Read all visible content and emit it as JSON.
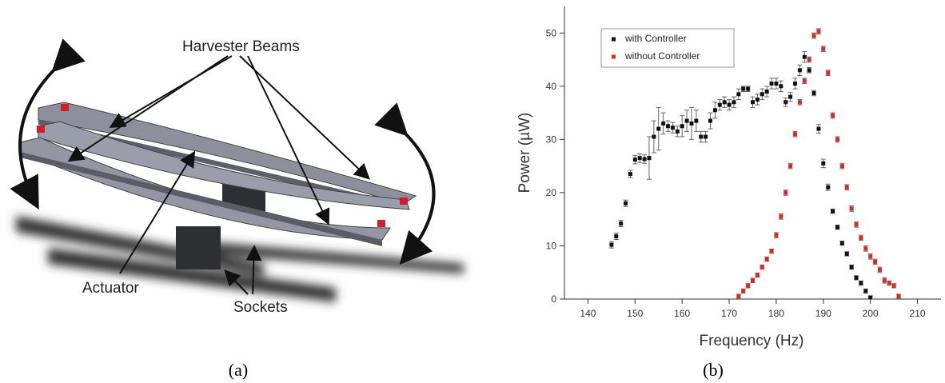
{
  "diagram": {
    "labels": {
      "beams": "Harvester Beams",
      "actuator": "Actuator",
      "sockets": "Sockets"
    },
    "caption": "(a)"
  },
  "chart_data": {
    "type": "scatter",
    "caption": "(b)",
    "x_label": "Frequency (Hz)",
    "y_label": "Power (µW)",
    "xlim": [
      135,
      215
    ],
    "xticks": [
      140,
      150,
      160,
      170,
      180,
      190,
      200,
      210
    ],
    "ylim": [
      0,
      55
    ],
    "yticks": [
      0,
      10,
      20,
      30,
      40,
      50
    ],
    "legend": "top-left",
    "series": [
      {
        "name": "with Controller",
        "color": "#111111",
        "x": [
          145,
          146,
          147,
          148,
          149,
          150,
          151,
          152,
          153,
          154,
          155,
          156,
          157,
          158,
          159,
          160,
          161,
          162,
          163,
          164,
          165,
          166,
          167,
          168,
          169,
          170,
          171,
          172,
          173,
          174,
          175,
          176,
          177,
          178,
          179,
          180,
          181,
          182,
          183,
          184,
          185,
          186,
          187,
          188,
          189,
          190,
          191,
          192,
          193,
          194,
          195,
          196,
          197,
          198,
          199,
          200
        ],
        "values": [
          10.2,
          11.8,
          14.2,
          18,
          23.5,
          26.2,
          26.5,
          26.3,
          26.5,
          30.5,
          32,
          33,
          32.5,
          32.2,
          31.5,
          32.5,
          33.5,
          33,
          33.5,
          30.5,
          30.5,
          33.5,
          35.5,
          36.5,
          37,
          36.5,
          37,
          38.5,
          39.5,
          39.5,
          37,
          37.5,
          38.5,
          39,
          40.5,
          40.5,
          40,
          37,
          38,
          40.5,
          43,
          45.5,
          43,
          38.7,
          32,
          25.5,
          21,
          16.5,
          13.5,
          10.5,
          8.5,
          6,
          4,
          3,
          1.5,
          0.3
        ],
        "errors": [
          0.6,
          0.6,
          0.6,
          0.6,
          0.7,
          0.8,
          0.8,
          0.8,
          4,
          3,
          4,
          2,
          1,
          1,
          1,
          2,
          2,
          3,
          2,
          1,
          1,
          1.5,
          1.5,
          1,
          1,
          1,
          1,
          1,
          0.5,
          0.5,
          1,
          1,
          1,
          1,
          1,
          1,
          1,
          0.8,
          0.8,
          1,
          1,
          1,
          0.5,
          0.5,
          0.8,
          0.8,
          0.6,
          0.4,
          0.4,
          0.4,
          0.4,
          0.4,
          0.4,
          0.4,
          0.4,
          0.3
        ]
      },
      {
        "name": "without Controller",
        "color": "#e0261d",
        "x": [
          172,
          173,
          174,
          175,
          176,
          177,
          178,
          179,
          180,
          181,
          182,
          183,
          184,
          185,
          186,
          187,
          188,
          189,
          190,
          191,
          192,
          193,
          194,
          195,
          196,
          197,
          198,
          199,
          200,
          201,
          202,
          203,
          204,
          205,
          206
        ],
        "values": [
          0.5,
          1.5,
          2.5,
          3.5,
          4.5,
          6,
          7.5,
          9,
          12,
          15.5,
          20,
          25,
          31,
          37,
          41,
          45,
          49.5,
          50.3,
          47,
          42.5,
          34.5,
          30,
          25,
          21,
          17,
          14,
          11.5,
          9.5,
          8,
          7,
          5.5,
          3.5,
          3,
          2.5,
          0.5
        ],
        "errors": [
          0.4,
          0.4,
          0.4,
          0.4,
          0.4,
          0.4,
          0.4,
          0.4,
          0.5,
          0.5,
          0.5,
          0.5,
          0.5,
          0.5,
          0.5,
          0.5,
          0.5,
          0.5,
          0.5,
          0.5,
          0.5,
          0.5,
          0.5,
          0.5,
          0.5,
          0.5,
          0.5,
          0.5,
          0.5,
          0.5,
          0.5,
          0.5,
          0.4,
          0.4,
          0.4
        ]
      }
    ]
  }
}
